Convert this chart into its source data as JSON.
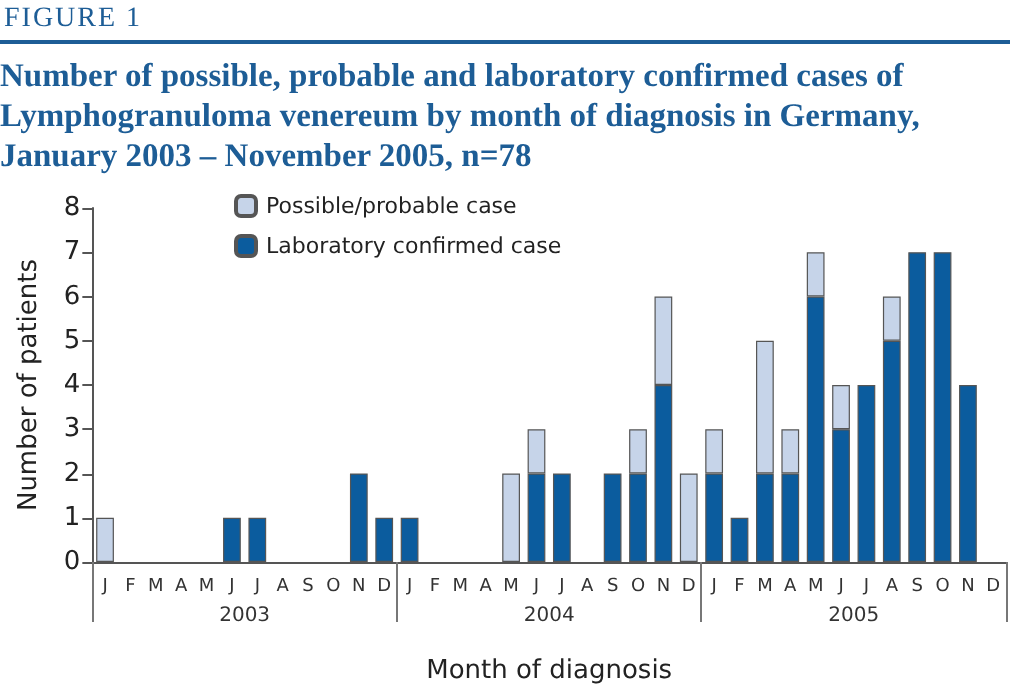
{
  "chart_data": {
    "type": "bar",
    "title": "FIGURE 1",
    "subtitle": "Number of possible, probable and laboratory confirmed cases of Lymphogranuloma venereum by month of diagnosis in Germany, January 2003 – November 2005, n=78",
    "xlabel": "Month of diagnosis",
    "ylabel": "Number of patients",
    "categories": [
      "J",
      "F",
      "M",
      "A",
      "M",
      "J",
      "J",
      "A",
      "S",
      "O",
      "N",
      "D",
      "J",
      "F",
      "M",
      "A",
      "M",
      "J",
      "J",
      "A",
      "S",
      "O",
      "N",
      "D",
      "J",
      "F",
      "M",
      "A",
      "M",
      "J",
      "J",
      "A",
      "S",
      "O",
      "N",
      "D"
    ],
    "annotations": [
      "2003",
      "2004",
      "2005"
    ],
    "stacked": true,
    "series": [
      {
        "name": "Laboratory confirmed case",
        "color": "#0b5c9e",
        "values": [
          0,
          0,
          0,
          0,
          0,
          1,
          1,
          0,
          0,
          0,
          2,
          1,
          1,
          0,
          0,
          0,
          0,
          2,
          2,
          0,
          2,
          2,
          4,
          0,
          2,
          1,
          2,
          2,
          6,
          3,
          4,
          5,
          7,
          7,
          4,
          0
        ]
      },
      {
        "name": "Possible/probable case",
        "color": "#c6d4e9",
        "values": [
          1,
          0,
          0,
          0,
          0,
          0,
          0,
          0,
          0,
          0,
          0,
          0,
          0,
          0,
          0,
          0,
          2,
          1,
          0,
          0,
          0,
          1,
          2,
          2,
          1,
          0,
          3,
          1,
          1,
          1,
          0,
          1,
          0,
          0,
          0,
          0
        ]
      }
    ],
    "ylim": [
      0,
      8
    ],
    "yticks": [
      0,
      1,
      2,
      3,
      4,
      5,
      6,
      7,
      8
    ],
    "grid": false,
    "legend": "top left"
  }
}
